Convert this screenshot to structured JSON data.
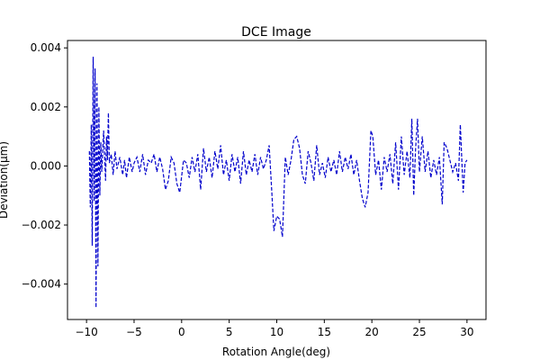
{
  "chart_data": {
    "type": "line",
    "title": "DCE Image",
    "x_label": "Rotation Angle(deg)",
    "y_label": "Deviation(μm)",
    "xlim": [
      -12,
      32
    ],
    "ylim": [
      -0.0052,
      0.00425
    ],
    "xticks": [
      {
        "value": -10,
        "label": "−10"
      },
      {
        "value": -5,
        "label": "−5"
      },
      0,
      5,
      10,
      15,
      20,
      25,
      30
    ],
    "yticks": [
      {
        "value": -0.004,
        "label": "−0.004"
      },
      {
        "value": -0.002,
        "label": "−0.002"
      },
      {
        "value": 0,
        "label": "0.000"
      },
      {
        "value": 0.002,
        "label": "0.002"
      },
      {
        "value": 0.004,
        "label": "0.004"
      }
    ],
    "grid": false,
    "series": [
      {
        "color": "#0000cc",
        "linestyle": "dashed",
        "x": [
          -9.7,
          -9.6,
          -9.5,
          -9.4,
          -9.3,
          -9.2,
          -9.1,
          -9.0,
          -8.9,
          -8.8,
          -8.7,
          -8.6,
          -8.5,
          -8.4,
          -8.2,
          -8.0,
          -7.9,
          -7.8,
          -7.7,
          -7.6,
          -7.4,
          -7.2,
          -7.0,
          -6.8,
          -6.5,
          -6.2,
          -6.0,
          -5.8,
          -5.5,
          -5.2,
          -5.0,
          -4.7,
          -4.4,
          -4.1,
          -3.8,
          -3.5,
          -3.2,
          -2.9,
          -2.6,
          -2.3,
          -2.0,
          -1.7,
          -1.4,
          -1.1,
          -0.8,
          -0.5,
          -0.2,
          0.2,
          0.5,
          0.8,
          1.1,
          1.4,
          1.7,
          2.0,
          2.3,
          2.6,
          2.9,
          3.2,
          3.5,
          3.8,
          4.1,
          4.4,
          4.7,
          5.0,
          5.3,
          5.6,
          5.9,
          6.2,
          6.5,
          6.8,
          7.1,
          7.4,
          7.7,
          8.0,
          8.3,
          8.6,
          8.9,
          9.2,
          9.5,
          9.7,
          10.0,
          10.3,
          10.6,
          10.9,
          11.2,
          11.5,
          11.8,
          12.1,
          12.4,
          12.7,
          13.0,
          13.3,
          13.6,
          13.9,
          14.2,
          14.5,
          14.8,
          15.1,
          15.4,
          15.7,
          16.0,
          16.3,
          16.6,
          16.9,
          17.2,
          17.5,
          17.8,
          18.1,
          18.4,
          18.7,
          19.0,
          19.3,
          19.6,
          19.9,
          20.1,
          20.4,
          20.7,
          21.0,
          21.3,
          21.6,
          21.9,
          22.2,
          22.5,
          22.8,
          23.1,
          23.4,
          23.7,
          24.0,
          24.2,
          24.4,
          24.6,
          24.8,
          25.0,
          25.3,
          25.6,
          25.9,
          26.2,
          26.5,
          26.8,
          27.1,
          27.4,
          27.6,
          27.9,
          28.2,
          28.5,
          28.8,
          29.1,
          29.3,
          29.6,
          29.8,
          30.0
        ],
        "values": [
          0.0005,
          -0.0014,
          0.0014,
          -0.0027,
          0.0037,
          -0.0012,
          0.0033,
          -0.0048,
          0.0028,
          -0.0034,
          0.002,
          -0.001,
          0.0008,
          -0.0002,
          0.0012,
          -0.0005,
          0.001,
          0.0002,
          0.0018,
          0.0001,
          0.0004,
          -0.0003,
          0.0005,
          -0.0001,
          0.0003,
          -0.0003,
          0.0002,
          -0.0004,
          0.0003,
          -0.0002,
          0.0001,
          0.0003,
          -0.0002,
          0.0004,
          -0.0003,
          0.0002,
          0.0001,
          0.0004,
          -0.0002,
          0.0003,
          -0.0001,
          -0.0008,
          -0.0005,
          0.0003,
          0.0001,
          -0.0006,
          -0.0009,
          0.0002,
          0.0001,
          -0.0004,
          0.0003,
          -0.0002,
          0.0004,
          -0.0008,
          0.0006,
          -0.0002,
          0.0003,
          -0.0004,
          0.0005,
          -0.0001,
          0.0007,
          -0.0003,
          0.0002,
          -0.0005,
          0.0004,
          -0.0002,
          0.0003,
          -0.0006,
          0.0005,
          -0.0003,
          0.0002,
          -0.0002,
          0.0004,
          -0.0003,
          0.0003,
          -0.0001,
          0.0002,
          0.0007,
          -0.001,
          -0.0022,
          -0.0017,
          -0.0018,
          -0.0024,
          0.0003,
          -0.0003,
          0.0002,
          0.0009,
          0.001,
          0.0006,
          -0.0003,
          -0.0006,
          0.0005,
          0.0001,
          -0.0005,
          0.0007,
          -0.0003,
          0.0001,
          -0.0004,
          0.0003,
          -0.0002,
          0.0002,
          -0.0003,
          0.0005,
          -0.0002,
          0.0003,
          -0.0001,
          0.0004,
          -0.0003,
          0.0002,
          -0.0005,
          -0.0011,
          -0.0014,
          -0.0009,
          0.0012,
          0.001,
          -0.0003,
          0.0002,
          -0.0008,
          0.0003,
          -0.0002,
          0.0004,
          -0.0006,
          0.0008,
          -0.0008,
          0.001,
          -0.0003,
          0.0005,
          -0.0004,
          0.0016,
          -0.001,
          0.0006,
          0.0016,
          -0.0002,
          0.001,
          -0.0002,
          0.0005,
          -0.0004,
          0.0002,
          -0.0003,
          0.0003,
          -0.0013,
          0.0008,
          0.0006,
          0.0002,
          -0.0002,
          0.0001,
          -0.0005,
          0.0014,
          -0.0009,
          0.0001,
          0.0002
        ]
      }
    ]
  }
}
